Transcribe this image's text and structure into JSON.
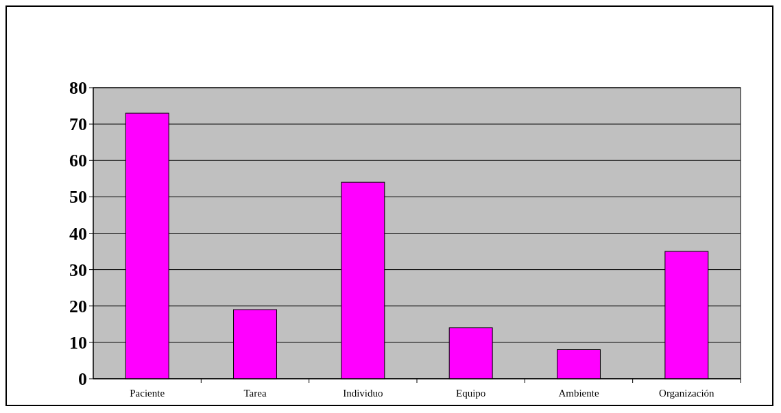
{
  "chart_data": {
    "type": "bar",
    "categories": [
      "Paciente",
      "Tarea",
      "Individuo",
      "Equipo",
      "Ambiente",
      "Organización"
    ],
    "values": [
      73,
      19,
      54,
      14,
      8,
      35
    ],
    "color": "#ff00ff",
    "ylim": [
      0,
      80
    ],
    "yticks": [
      0,
      10,
      20,
      30,
      40,
      50,
      60,
      70,
      80
    ],
    "grid": "y"
  }
}
